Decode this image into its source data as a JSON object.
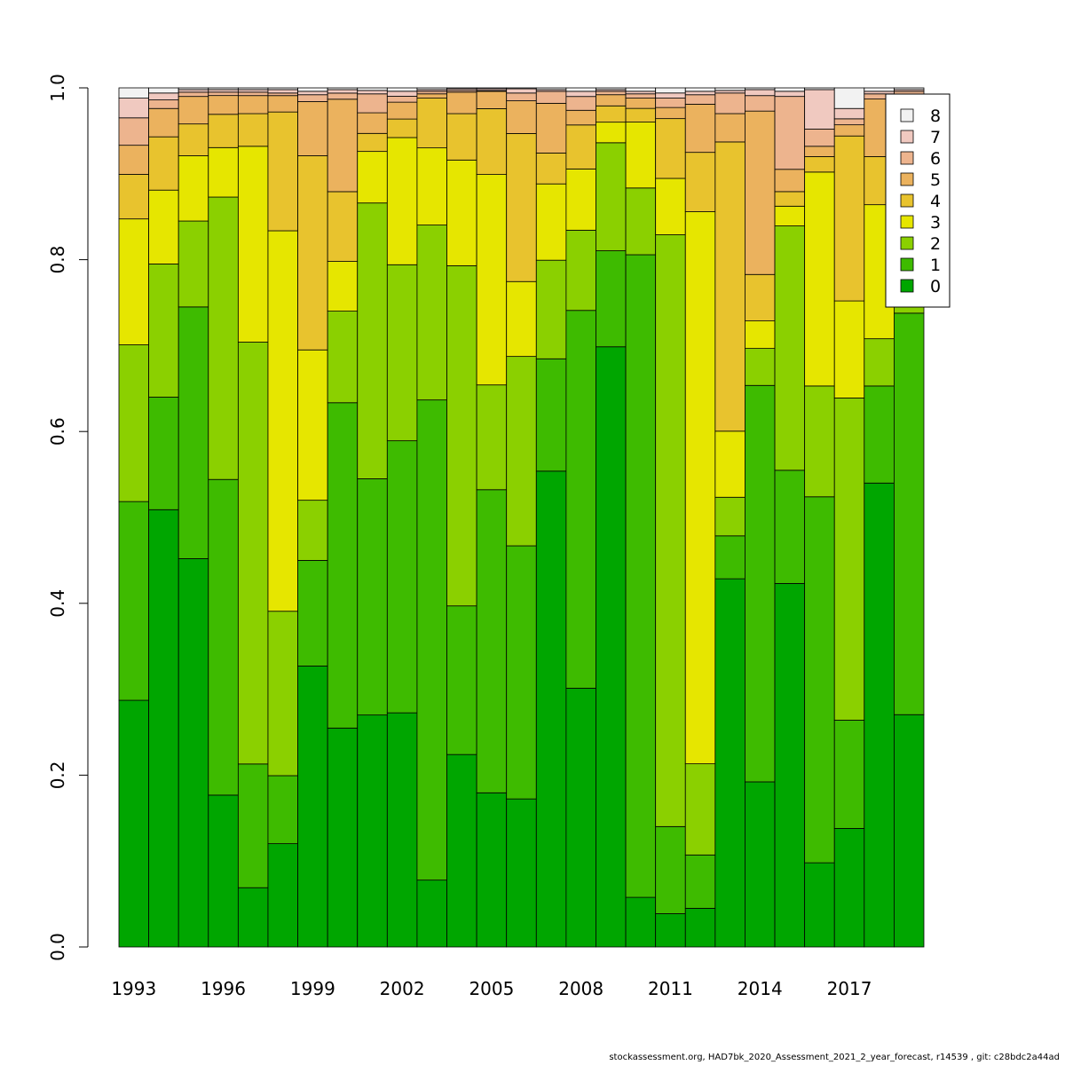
{
  "chart_data": {
    "type": "bar",
    "stacked": true,
    "normalized": true,
    "ylim": [
      0,
      1
    ],
    "y_ticks": [
      "0.0",
      "0.2",
      "0.4",
      "0.6",
      "0.8",
      "1.0"
    ],
    "x_tick_labels": [
      "1993",
      "1996",
      "1999",
      "2002",
      "2005",
      "2008",
      "2011",
      "2014",
      "2017"
    ],
    "categories": [
      "1993",
      "1994",
      "1995",
      "1996",
      "1997",
      "1998",
      "1999",
      "2000",
      "2001",
      "2002",
      "2003",
      "2004",
      "2005",
      "2006",
      "2007",
      "2008",
      "2009",
      "2010",
      "2011",
      "2012",
      "2013",
      "2014",
      "2015",
      "2016",
      "2017",
      "2018",
      "2019"
    ],
    "legend_position": "top-right",
    "legend_order": [
      "8",
      "7",
      "6",
      "5",
      "4",
      "3",
      "2",
      "1",
      "0"
    ],
    "series": [
      {
        "name": "0",
        "color": "#00A600",
        "values": [
          0.288,
          0.509,
          0.452,
          0.178,
          0.069,
          0.12,
          0.327,
          0.251,
          0.27,
          0.278,
          0.078,
          0.224,
          0.178,
          0.172,
          0.555,
          0.3,
          0.7,
          0.058,
          0.039,
          0.045,
          0.429,
          0.192,
          0.424,
          0.098,
          0.138,
          0.54,
          0.265
        ]
      },
      {
        "name": "1",
        "color": "#3EBB00",
        "values": [
          0.232,
          0.131,
          0.293,
          0.37,
          0.144,
          0.079,
          0.123,
          0.373,
          0.275,
          0.323,
          0.56,
          0.173,
          0.35,
          0.294,
          0.131,
          0.438,
          0.112,
          0.751,
          0.102,
          0.062,
          0.05,
          0.461,
          0.132,
          0.426,
          0.126,
          0.113,
          0.458
        ]
      },
      {
        "name": "2",
        "color": "#8BD000",
        "values": [
          0.183,
          0.155,
          0.1,
          0.331,
          0.491,
          0.191,
          0.07,
          0.105,
          0.321,
          0.209,
          0.204,
          0.396,
          0.121,
          0.22,
          0.115,
          0.093,
          0.126,
          0.078,
          0.693,
          0.106,
          0.045,
          0.043,
          0.285,
          0.129,
          0.375,
          0.055,
          0.08
        ]
      },
      {
        "name": "3",
        "color": "#E6E600",
        "values": [
          0.147,
          0.086,
          0.076,
          0.058,
          0.228,
          0.442,
          0.175,
          0.057,
          0.06,
          0.151,
          0.09,
          0.123,
          0.243,
          0.087,
          0.089,
          0.071,
          0.024,
          0.077,
          0.066,
          0.642,
          0.077,
          0.032,
          0.023,
          0.249,
          0.113,
          0.156,
          0.085
        ]
      },
      {
        "name": "4",
        "color": "#E8C32E",
        "values": [
          0.052,
          0.062,
          0.037,
          0.039,
          0.038,
          0.138,
          0.226,
          0.08,
          0.021,
          0.022,
          0.058,
          0.054,
          0.076,
          0.172,
          0.036,
          0.051,
          0.019,
          0.016,
          0.07,
          0.069,
          0.337,
          0.054,
          0.017,
          0.018,
          0.192,
          0.056,
          0.06
        ]
      },
      {
        "name": "5",
        "color": "#EBB25E",
        "values": [
          0.034,
          0.033,
          0.032,
          0.022,
          0.021,
          0.019,
          0.063,
          0.106,
          0.024,
          0.02,
          0.005,
          0.025,
          0.02,
          0.038,
          0.058,
          0.017,
          0.013,
          0.012,
          0.013,
          0.056,
          0.033,
          0.19,
          0.026,
          0.012,
          0.013,
          0.067,
          0.02
        ]
      },
      {
        "name": "6",
        "color": "#EDB48E",
        "values": [
          0.032,
          0.01,
          0.005,
          0.004,
          0.004,
          0.003,
          0.008,
          0.007,
          0.022,
          0.007,
          0.003,
          0.002,
          0.001,
          0.009,
          0.014,
          0.016,
          0.004,
          0.005,
          0.011,
          0.011,
          0.024,
          0.018,
          0.085,
          0.02,
          0.007,
          0.006,
          0.008
        ]
      },
      {
        "name": "7",
        "color": "#F0C9C0",
        "values": [
          0.023,
          0.008,
          0.003,
          0.003,
          0.003,
          0.004,
          0.004,
          0.004,
          0.004,
          0.006,
          0.002,
          0.002,
          0.002,
          0.005,
          0.002,
          0.006,
          0.002,
          0.003,
          0.006,
          0.004,
          0.003,
          0.007,
          0.006,
          0.046,
          0.012,
          0.003,
          0.002
        ]
      },
      {
        "name": "8",
        "color": "#F2F2F2",
        "values": [
          0.012,
          0.006,
          0.002,
          0.002,
          0.002,
          0.002,
          0.004,
          0.002,
          0.003,
          0.004,
          0.002,
          0.001,
          0.001,
          0.001,
          0.002,
          0.004,
          0.002,
          0.004,
          0.006,
          0.004,
          0.003,
          0.002,
          0.004,
          0.002,
          0.024,
          0.004,
          0.002
        ]
      }
    ]
  },
  "footer_text": "stockassessment.org, HAD7bk_2020_Assessment_2021_2_year_forecast, r14539 , git: c28bdc2a44ad"
}
